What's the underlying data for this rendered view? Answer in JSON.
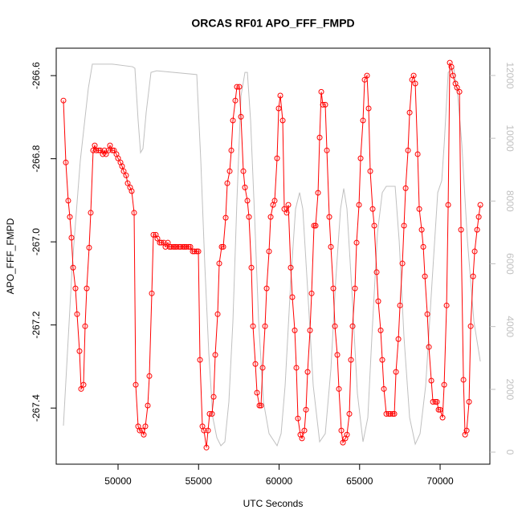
{
  "chart_data": {
    "type": "line",
    "title": "ORCAS RF01 APO_FFF_FMPD",
    "xlabel": "UTC Seconds",
    "ylabel": "APO_FFF_FMPD",
    "xlim": [
      46160,
      73090
    ],
    "xticks": [
      50000,
      55000,
      60000,
      65000,
      70000
    ],
    "ylim": [
      -267.535,
      -266.534
    ],
    "yticks": [
      -266.6,
      -266.8,
      {
        "value": -267,
        "label": "-267.0"
      },
      -267.2,
      -267.4
    ],
    "y2lim": [
      -384,
      12870
    ],
    "y2ticks": [
      0,
      2000,
      4000,
      6000,
      8000,
      10000,
      12000
    ],
    "y2color": "#c0c0c0",
    "series": [
      {
        "color": "#ff0000",
        "markers": true,
        "x": [
          46608,
          46758,
          46907,
          47007,
          47107,
          47207,
          47356,
          47456,
          47606,
          47706,
          47855,
          47955,
          48055,
          48204,
          48304,
          48453,
          48553,
          48653,
          48803,
          48902,
          49052,
          49152,
          49252,
          49401,
          49501,
          49651,
          49751,
          49900,
          50000,
          50150,
          50249,
          50349,
          50499,
          50599,
          50748,
          50848,
          50998,
          51097,
          51247,
          51347,
          51496,
          51596,
          51696,
          51845,
          51945,
          52095,
          52195,
          52344,
          52444,
          52594,
          52693,
          52843,
          52943,
          53093,
          53192,
          53292,
          53442,
          53541,
          53641,
          53791,
          53890,
          54040,
          54140,
          54240,
          54389,
          54489,
          54639,
          54739,
          54888,
          54988,
          55088,
          55238,
          55337,
          55487,
          55587,
          55686,
          55836,
          55936,
          56036,
          56185,
          56285,
          56435,
          56534,
          56684,
          56784,
          56933,
          57033,
          57133,
          57282,
          57382,
          57532,
          57632,
          57781,
          57881,
          58031,
          58130,
          58280,
          58380,
          58529,
          58629,
          58779,
          58878,
          58978,
          59128,
          59228,
          59377,
          59477,
          59626,
          59726,
          59876,
          59975,
          60075,
          60225,
          60325,
          60474,
          60574,
          60723,
          60823,
          60973,
          61072,
          61172,
          61322,
          61422,
          61571,
          61671,
          61771,
          61920,
          62020,
          62170,
          62269,
          62419,
          62519,
          62619,
          62719,
          62868,
          62968,
          63118,
          63217,
          63367,
          63467,
          63616,
          63716,
          63866,
          63965,
          64115,
          64215,
          64364,
          64464,
          64564,
          64713,
          64813,
          64963,
          65062,
          65212,
          65312,
          65461,
          65561,
          65661,
          65810,
          65910,
          66060,
          66159,
          66309,
          66409,
          66509,
          66659,
          66809,
          66909,
          67058,
          67158,
          67259,
          67409,
          67509,
          67658,
          67758,
          67858,
          68007,
          68107,
          68257,
          68357,
          68456,
          68606,
          68706,
          68855,
          68955,
          69055,
          69205,
          69304,
          69454,
          69554,
          69703,
          69803,
          69903,
          70002,
          70152,
          70252,
          70402,
          70501,
          70601,
          70701,
          70801,
          70950,
          71050,
          71200,
          71299,
          71449,
          71549,
          71649,
          71798,
          71898,
          72048,
          72147,
          72297,
          72397,
          72496
        ],
        "values": [
          -266.66,
          -266.809,
          -266.901,
          -266.94,
          -266.99,
          -267.062,
          -267.112,
          -267.174,
          -267.263,
          -267.354,
          -267.344,
          -267.203,
          -267.112,
          -267.014,
          -266.93,
          -266.78,
          -266.768,
          -266.78,
          -266.78,
          -266.78,
          -266.789,
          -266.78,
          -266.789,
          -266.78,
          -266.768,
          -266.78,
          -266.78,
          -266.789,
          -266.799,
          -266.809,
          -266.818,
          -266.83,
          -266.84,
          -266.859,
          -266.869,
          -266.878,
          -266.93,
          -267.344,
          -267.444,
          -267.454,
          -267.454,
          -267.464,
          -267.444,
          -267.394,
          -267.323,
          -267.124,
          -266.983,
          -266.983,
          -266.992,
          -267.002,
          -267.002,
          -267.002,
          -267.012,
          -267.002,
          -267.012,
          -267.012,
          -267.012,
          -267.012,
          -267.012,
          -267.012,
          -267.012,
          -267.012,
          -267.012,
          -267.012,
          -267.012,
          -267.012,
          -267.023,
          -267.023,
          -267.023,
          -267.023,
          -267.284,
          -267.444,
          -267.454,
          -267.495,
          -267.454,
          -267.414,
          -267.414,
          -267.373,
          -267.272,
          -267.174,
          -267.052,
          -267.012,
          -267.012,
          -266.942,
          -266.859,
          -266.83,
          -266.78,
          -266.708,
          -266.66,
          -266.627,
          -266.627,
          -266.699,
          -266.83,
          -266.869,
          -266.901,
          -266.94,
          -267.062,
          -267.203,
          -267.294,
          -267.363,
          -267.394,
          -267.394,
          -267.303,
          -267.203,
          -267.112,
          -267.023,
          -266.94,
          -266.911,
          -266.901,
          -266.799,
          -266.679,
          -266.648,
          -266.708,
          -266.921,
          -266.93,
          -266.911,
          -267.062,
          -267.133,
          -267.213,
          -267.303,
          -267.425,
          -267.464,
          -267.473,
          -267.454,
          -267.404,
          -267.313,
          -267.213,
          -267.124,
          -266.961,
          -266.961,
          -266.882,
          -266.749,
          -266.639,
          -266.67,
          -266.67,
          -266.78,
          -266.94,
          -267.012,
          -267.112,
          -267.203,
          -267.272,
          -267.354,
          -267.454,
          -267.483,
          -267.473,
          -267.464,
          -267.414,
          -267.284,
          -267.203,
          -267.112,
          -267.002,
          -266.911,
          -266.799,
          -266.708,
          -266.61,
          -266.6,
          -266.679,
          -266.83,
          -266.921,
          -266.961,
          -267.073,
          -267.143,
          -267.213,
          -267.284,
          -267.354,
          -267.414,
          -267.414,
          -267.414,
          -267.414,
          -267.414,
          -267.313,
          -267.234,
          -267.153,
          -267.052,
          -266.961,
          -266.871,
          -266.78,
          -266.689,
          -266.61,
          -266.6,
          -266.619,
          -266.789,
          -266.921,
          -266.971,
          -267.012,
          -267.083,
          -267.174,
          -267.253,
          -267.334,
          -267.385,
          -267.385,
          -267.385,
          -267.404,
          -267.404,
          -267.423,
          -267.344,
          -267.153,
          -266.911,
          -266.569,
          -266.579,
          -266.6,
          -266.619,
          -266.629,
          -266.639,
          -266.971,
          -267.332,
          -267.464,
          -267.454,
          -267.385,
          -267.203,
          -267.083,
          -267.023,
          -266.971,
          -266.94,
          -266.911
        ]
      },
      {
        "color": "#c0c0c0",
        "axis": "y2",
        "markers": false,
        "x": [
          46608,
          47157,
          47656,
          48154,
          48404,
          48653,
          49651,
          50898,
          51047,
          51247,
          51397,
          51546,
          51746,
          52045,
          52394,
          54888,
          55138,
          55387,
          55636,
          55886,
          56135,
          56385,
          56634,
          56883,
          57133,
          57382,
          57632,
          57881,
          58031,
          58230,
          58480,
          58729,
          59028,
          59377,
          59876,
          60126,
          60375,
          60724,
          61023,
          61273,
          61472,
          61771,
          62120,
          62519,
          62868,
          63217,
          63516,
          63816,
          64015,
          64215,
          64514,
          64863,
          65212,
          65511,
          65761,
          66110,
          66409,
          66659,
          67208,
          67458,
          67757,
          68106,
          68456,
          68755,
          69104,
          69503,
          69852,
          70102,
          70252,
          70501,
          70850,
          71100,
          71349,
          71698,
          72097,
          72496
        ],
        "values": [
          845,
          5960,
          9290,
          11590,
          12360,
          12360,
          12360,
          12280,
          12230,
          10570,
          9540,
          9670,
          10820,
          12100,
          12150,
          12030,
          9290,
          5960,
          3150,
          1100,
          460,
          205,
          330,
          1610,
          4170,
          8010,
          11340,
          12100,
          12100,
          10570,
          7500,
          4170,
          1610,
          590,
          205,
          590,
          2120,
          5450,
          7750,
          8270,
          7750,
          5200,
          2120,
          330,
          590,
          2640,
          5450,
          7750,
          8400,
          7750,
          5200,
          1870,
          330,
          1100,
          3660,
          6990,
          8270,
          8470,
          8470,
          6730,
          3660,
          1100,
          255,
          590,
          2120,
          5450,
          8270,
          8650,
          9800,
          12100,
          12230,
          11340,
          9800,
          6730,
          4170,
          2890
        ]
      }
    ]
  }
}
